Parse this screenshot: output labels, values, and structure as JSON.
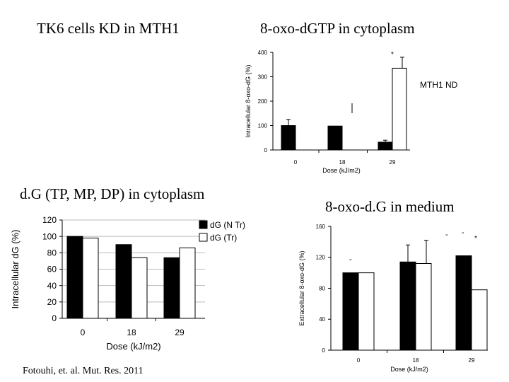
{
  "header": {
    "title": "TK6 cells KD in MTH1"
  },
  "citation": "Fotouhi, et. al. Mut. Res. 2011",
  "colors": {
    "series_1": "#000000",
    "series_2": "#ffffff",
    "axis": "#000000",
    "grid": "#bbbbbb"
  },
  "chart_data": [
    {
      "type": "bar",
      "title": "8-oxo-dGTP in cytoplasm",
      "xlabel": "Dose (kJ/m2)",
      "ylabel": "Intracellular 8-oxo-dG (%)",
      "categories": [
        "0",
        "18",
        "29"
      ],
      "yticks": [
        "0",
        "100",
        "200",
        "300",
        "400"
      ],
      "ylim": [
        0,
        400
      ],
      "series": [
        {
          "values": [
            100,
            98,
            32
          ],
          "errors": [
            25,
            0,
            8
          ]
        },
        {
          "values": [
            0,
            0,
            335
          ],
          "errors": [
            0,
            0,
            45
          ]
        }
      ],
      "annotations": [
        "*",
        "MTH1 ND"
      ],
      "grid": false
    },
    {
      "type": "bar",
      "title": "d.G (TP, MP, DP) in cytoplasm",
      "xlabel": "Dose (kJ/m2)",
      "ylabel": "Intracellular dG (%)",
      "categories": [
        "0",
        "18",
        "29"
      ],
      "yticks": [
        "0",
        "20",
        "40",
        "60",
        "80",
        "100",
        "120"
      ],
      "ylim": [
        0,
        120
      ],
      "series": [
        {
          "name": "dG (N Tr)",
          "values": [
            100,
            90,
            74
          ],
          "errors": [
            0,
            0,
            0
          ]
        },
        {
          "name": "dG (Tr)",
          "values": [
            98,
            74,
            86
          ],
          "errors": [
            0,
            0,
            0
          ]
        }
      ],
      "legend": "top-right",
      "grid": true
    },
    {
      "type": "bar",
      "title": "8-oxo-d.G in medium",
      "xlabel": "Dose (kJ/m2)",
      "ylabel": "Extracellular 8-oxo-dG (%)",
      "categories": [
        "0",
        "18",
        "29"
      ],
      "yticks": [
        "0",
        "40",
        "80",
        "120",
        "160"
      ],
      "ylim": [
        0,
        160
      ],
      "series": [
        {
          "values": [
            100,
            114,
            122
          ],
          "errors": [
            0,
            22,
            0
          ]
        },
        {
          "values": [
            100,
            112,
            78
          ],
          "errors": [
            0,
            30,
            0
          ]
        }
      ],
      "annotations": [
        "-",
        "-",
        "-",
        "*"
      ],
      "grid": false
    }
  ]
}
